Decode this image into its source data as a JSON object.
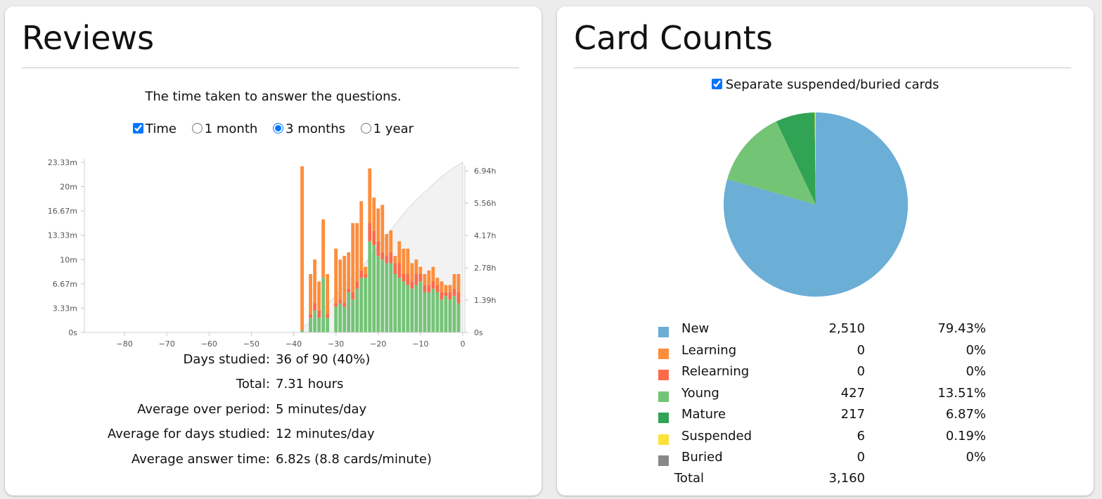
{
  "reviews": {
    "title": "Reviews",
    "subtitle": "The time taken to answer the questions.",
    "controls": {
      "time_label": "Time",
      "time_checked": true,
      "ranges": [
        "1 month",
        "3 months",
        "1 year"
      ],
      "selected_range": "3 months"
    },
    "stats": [
      {
        "label": "Days studied:",
        "value": "36 of 90 (40%)"
      },
      {
        "label": "Total:",
        "value": "7.31 hours"
      },
      {
        "label": "Average over period:",
        "value": "5 minutes/day"
      },
      {
        "label": "Average for days studied:",
        "value": "12 minutes/day"
      },
      {
        "label": "Average answer time:",
        "value": "6.82s (8.8 cards/minute)"
      }
    ]
  },
  "card_counts": {
    "title": "Card Counts",
    "separate_label": "Separate suspended/buried cards",
    "separate_checked": true,
    "legend": [
      {
        "label": "New",
        "count": "2,510",
        "pct": "79.43%",
        "color": "#6baed6"
      },
      {
        "label": "Learning",
        "count": "0",
        "pct": "0%",
        "color": "#fd8d3c"
      },
      {
        "label": "Relearning",
        "count": "0",
        "pct": "0%",
        "color": "#fb6a4a"
      },
      {
        "label": "Young",
        "count": "427",
        "pct": "13.51%",
        "color": "#74c476"
      },
      {
        "label": "Mature",
        "count": "217",
        "pct": "6.87%",
        "color": "#31a354"
      },
      {
        "label": "Suspended",
        "count": "6",
        "pct": "0.19%",
        "color": "#fde13a"
      },
      {
        "label": "Buried",
        "count": "0",
        "pct": "0%",
        "color": "#888888"
      }
    ],
    "total_label": "Total",
    "total_count": "3,160"
  },
  "chart_data": [
    {
      "type": "bar",
      "stacked": true,
      "x_unit": "days",
      "xlim": [
        -89,
        0
      ],
      "ylim_minutes": [
        0,
        23.33
      ],
      "y_ticks": [
        "0s",
        "3.33m",
        "6.67m",
        "10m",
        "13.33m",
        "16.67m",
        "20m",
        "23.33m"
      ],
      "y_tick_values": [
        0,
        3.33,
        6.67,
        10,
        13.33,
        16.67,
        20,
        23.33
      ],
      "y2_ticks": [
        "0s",
        "1.39h",
        "2.78h",
        "4.17h",
        "5.56h",
        "6.94h"
      ],
      "y2_tick_values": [
        0,
        1.39,
        2.78,
        4.17,
        5.56,
        6.94
      ],
      "y2lim_hours": [
        0,
        7.31
      ],
      "x_ticks": [
        "−80",
        "−70",
        "−60",
        "−50",
        "−40",
        "−30",
        "−20",
        "−10",
        "0"
      ],
      "x_tick_values": [
        -80,
        -70,
        -60,
        -50,
        -40,
        -30,
        -20,
        -10,
        0
      ],
      "series": [
        {
          "color": "#74c476",
          "x": [
            -38,
            -36,
            -35,
            -34,
            -33,
            -32,
            -30,
            -29,
            -28,
            -27,
            -26,
            -25,
            -24,
            -23,
            -22,
            -21,
            -20,
            -19,
            -18,
            -17,
            -16,
            -15,
            -14,
            -13,
            -12,
            -11,
            -10,
            -9,
            -8,
            -7,
            -6,
            -5,
            -4,
            -3,
            -2,
            -1
          ],
          "values": [
            0.3,
            2.0,
            3.0,
            2.0,
            7.5,
            2.0,
            3.5,
            4.0,
            3.5,
            5.5,
            4.5,
            6.0,
            7.5,
            7.5,
            12.5,
            12.0,
            10.5,
            10.0,
            9.5,
            9.5,
            8.0,
            7.5,
            7.0,
            6.5,
            6.0,
            6.5,
            7.0,
            5.5,
            5.5,
            6.0,
            5.5,
            4.5,
            5.0,
            4.5,
            5.0,
            4.0
          ]
        },
        {
          "color": "#31a354",
          "x": [
            -38,
            -36,
            -35,
            -34,
            -33,
            -32,
            -30,
            -29,
            -28,
            -27,
            -26,
            -25,
            -24,
            -23,
            -22,
            -21,
            -20,
            -19,
            -18,
            -17,
            -16,
            -15,
            -14,
            -13,
            -12,
            -11,
            -10,
            -9,
            -8,
            -7,
            -6,
            -5,
            -4,
            -3,
            -2,
            -1
          ],
          "values": [
            0,
            0,
            0,
            0,
            0,
            0,
            0,
            0,
            0,
            0,
            0,
            0,
            0,
            0,
            0,
            0,
            0,
            0,
            0,
            0,
            0,
            0,
            0,
            0,
            0,
            0,
            0,
            0,
            0,
            0,
            0,
            0,
            0,
            0,
            0,
            0
          ]
        },
        {
          "color": "#fb6a4a",
          "x": [
            -38,
            -36,
            -35,
            -34,
            -33,
            -32,
            -30,
            -29,
            -28,
            -27,
            -26,
            -25,
            -24,
            -23,
            -22,
            -21,
            -20,
            -19,
            -18,
            -17,
            -16,
            -15,
            -14,
            -13,
            -12,
            -11,
            -10,
            -9,
            -8,
            -7,
            -6,
            -5,
            -4,
            -3,
            -2,
            -1
          ],
          "values": [
            0,
            0.5,
            1.0,
            1.0,
            0,
            0.5,
            0.5,
            0.5,
            0.5,
            0.5,
            1.0,
            1.0,
            1.0,
            0.5,
            2.5,
            2.0,
            2.0,
            1.0,
            1.0,
            1.5,
            1.5,
            2.0,
            1.0,
            1.5,
            1.0,
            1.5,
            1.0,
            1.0,
            1.0,
            1.0,
            1.0,
            1.0,
            0.5,
            1.0,
            1.0,
            1.5
          ]
        },
        {
          "color": "#fd8d3c",
          "x": [
            -38,
            -36,
            -35,
            -34,
            -33,
            -32,
            -30,
            -29,
            -28,
            -27,
            -26,
            -25,
            -24,
            -23,
            -22,
            -21,
            -20,
            -19,
            -18,
            -17,
            -16,
            -15,
            -14,
            -13,
            -12,
            -11,
            -10,
            -9,
            -8,
            -7,
            -6,
            -5,
            -4,
            -3,
            -2,
            -1
          ],
          "values": [
            22.5,
            5.5,
            6.0,
            4.0,
            8.0,
            5.5,
            7.5,
            5.5,
            6.5,
            5.0,
            9.5,
            8.0,
            9.5,
            1.0,
            7.5,
            4.5,
            4.5,
            6.5,
            3.0,
            3.0,
            1.0,
            3.0,
            3.5,
            3.5,
            2.5,
            2.0,
            1.0,
            1.5,
            2.0,
            2.0,
            1.0,
            1.5,
            1.0,
            1.0,
            2.0,
            2.5
          ]
        }
      ],
      "cumulative_hours_series": {
        "color": "#e8e8e8",
        "x": [
          -38,
          -35,
          -32,
          -29,
          -26,
          -23,
          -20,
          -17,
          -14,
          -11,
          -8,
          -5,
          -2,
          0
        ],
        "values": [
          0.2,
          0.6,
          1.2,
          1.8,
          2.4,
          3.0,
          3.7,
          4.4,
          5.1,
          5.7,
          6.2,
          6.7,
          7.1,
          7.31
        ]
      }
    },
    {
      "type": "pie",
      "categories": [
        "New",
        "Learning",
        "Relearning",
        "Young",
        "Mature",
        "Suspended",
        "Buried"
      ],
      "values": [
        2510,
        0,
        0,
        427,
        217,
        6,
        0
      ],
      "colors": [
        "#6baed6",
        "#fd8d3c",
        "#fb6a4a",
        "#74c476",
        "#31a354",
        "#fde13a",
        "#888888"
      ]
    }
  ]
}
